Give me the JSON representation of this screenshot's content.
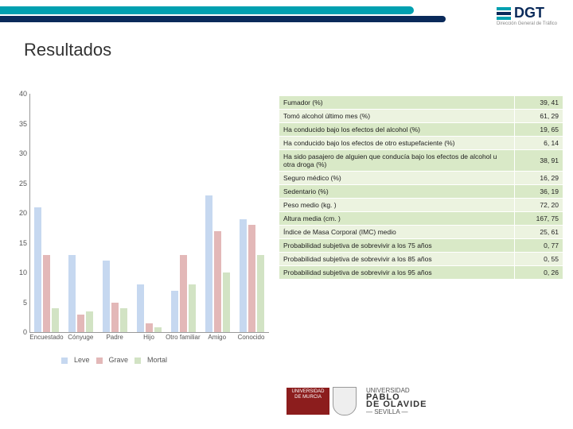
{
  "header": {
    "logo_text": "DGT",
    "logo_sub": "Dirección General de Tráfico"
  },
  "title": "Resultados",
  "chart": {
    "type": "bar",
    "y_max": 40,
    "y_ticks": [
      0,
      5,
      10,
      15,
      20,
      25,
      30,
      35,
      40
    ],
    "categories": [
      "Encuestado",
      "Cónyuge",
      "Padre",
      "Hijo",
      "Otro familiar",
      "Amigo",
      "Conocido"
    ],
    "series": [
      {
        "label": "Leve",
        "color": "#c6d8f0",
        "values": [
          21,
          13,
          12,
          8,
          7,
          23,
          19
        ]
      },
      {
        "label": "Grave",
        "color": "#e3b8b8",
        "values": [
          13,
          3,
          5,
          1.5,
          13,
          17,
          18
        ]
      },
      {
        "label": "Mortal",
        "color": "#d2e3c4",
        "values": [
          4,
          3.5,
          4,
          0.8,
          8,
          10,
          13
        ]
      }
    ],
    "background": "#ffffff",
    "axis_color": "#999999",
    "label_color": "#555555",
    "label_fontsize": 9
  },
  "table": {
    "rows": [
      [
        "Fumador (%)",
        "39, 41"
      ],
      [
        "Tomó alcohol último mes (%)",
        "61, 29"
      ],
      [
        "Ha conducido bajo los efectos del alcohol (%)",
        "19, 65"
      ],
      [
        "Ha conducido bajo los efectos de otro estupefaciente (%)",
        "6, 14"
      ],
      [
        "Ha sido pasajero de alguien que conducía bajo los efectos de alcohol u otra droga (%)",
        "38, 91"
      ],
      [
        "Seguro médico (%)",
        "16, 29"
      ],
      [
        "Sedentario (%)",
        "36, 19"
      ],
      [
        "Peso medio (kg. )",
        "72, 20"
      ],
      [
        "Altura media (cm. )",
        "167, 75"
      ],
      [
        "Índice de Masa Corporal (IMC) medio",
        "25, 61"
      ],
      [
        "Probabilidad subjetiva de sobrevivir a los 75 años",
        "0, 77"
      ],
      [
        "Probabilidad subjetiva de sobrevivir a los 85 años",
        "0, 55"
      ],
      [
        "Probabilidad subjetiva de sobrevivir a los 95 años",
        "0, 26"
      ]
    ],
    "odd_bg": "#d9e9c7",
    "even_bg": "#ecf3e0"
  },
  "footer": {
    "um_text": "UNIVERSIDAD DE MURCIA",
    "upo_label": "UNIVERSIDAD",
    "upo_name1": "PABLO",
    "upo_name2": "DE OLAVIDE",
    "upo_city": "— SEVILLA —"
  }
}
